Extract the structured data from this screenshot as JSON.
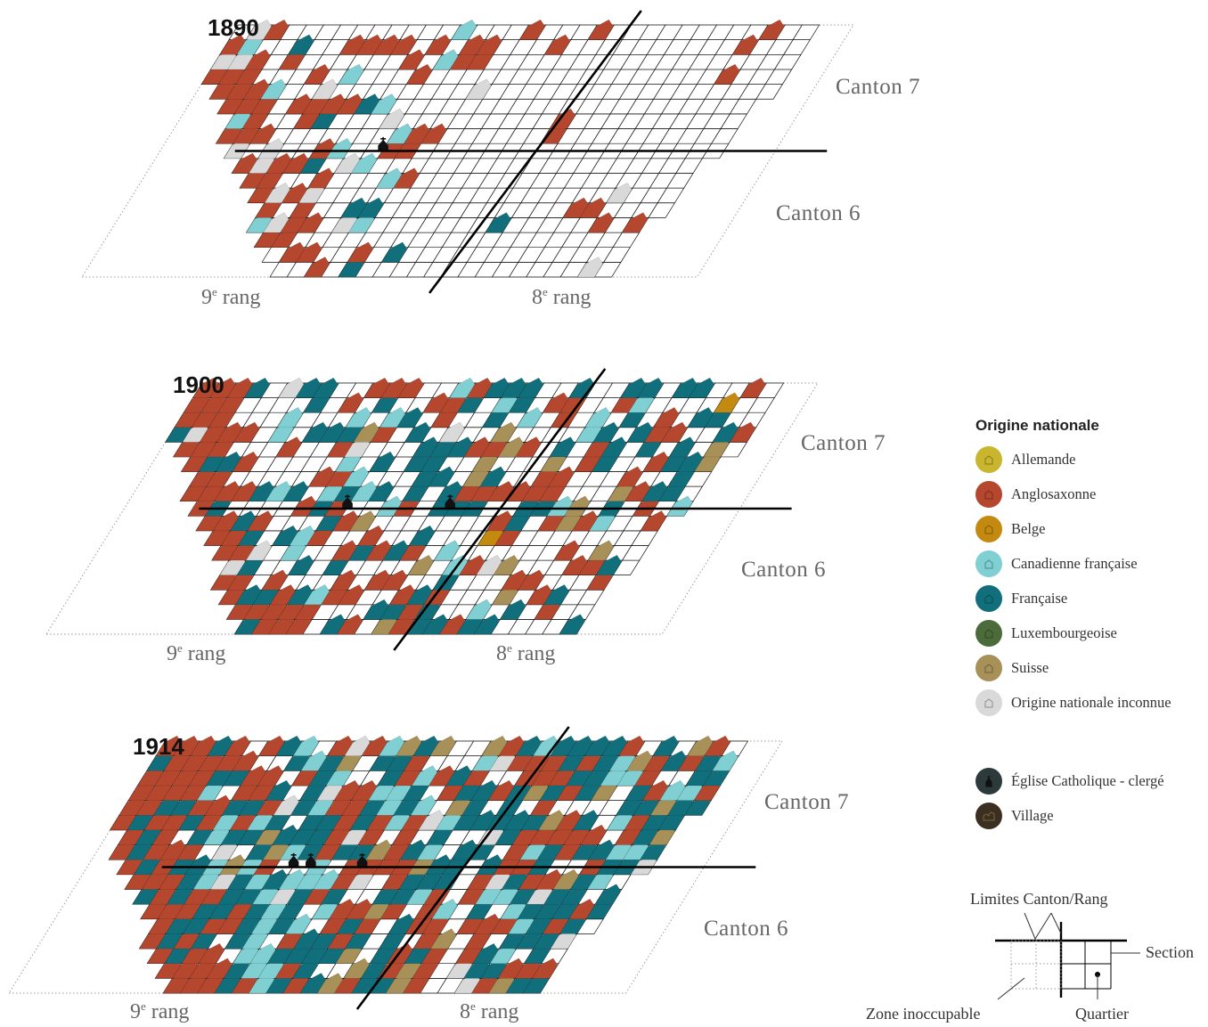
{
  "panels": [
    {
      "year": "1890",
      "canton_top": "Canton 7",
      "canton_bottom": "Canton 6",
      "rang_left_num": "9",
      "rang_right_num": "8",
      "rang_sup": "e",
      "rang_word": "rang"
    },
    {
      "year": "1900",
      "canton_top": "Canton 7",
      "canton_bottom": "Canton 6",
      "rang_left_num": "9",
      "rang_right_num": "8",
      "rang_sup": "e",
      "rang_word": "rang"
    },
    {
      "year": "1914",
      "canton_top": "Canton 7",
      "canton_bottom": "Canton 6",
      "rang_left_num": "9",
      "rang_right_num": "8",
      "rang_sup": "e",
      "rang_word": "rang"
    }
  ],
  "legend": {
    "title": "Origine nationale",
    "items": [
      {
        "label": "Allemande",
        "color": "#c9b52e",
        "icon": "house-icon"
      },
      {
        "label": "Anglosaxonne",
        "color": "#b5472e",
        "icon": "house-icon"
      },
      {
        "label": "Belge",
        "color": "#c48a10",
        "icon": "house-icon"
      },
      {
        "label": "Canadienne française",
        "color": "#7fcfd3",
        "icon": "house-icon"
      },
      {
        "label": "Française",
        "color": "#116f7c",
        "icon": "house-icon"
      },
      {
        "label": "Luxembourgeoise",
        "color": "#4b6b3a",
        "icon": "house-icon"
      },
      {
        "label": "Suisse",
        "color": "#a89158",
        "icon": "house-icon"
      },
      {
        "label": "Origine nationale inconnue",
        "color": "#d9d9d9",
        "icon": "house-icon"
      }
    ],
    "extra": [
      {
        "label": "Église Catholique - clergé",
        "color": "#2c3a3c",
        "icon": "church-icon"
      },
      {
        "label": "Village",
        "color": "#3a2f20",
        "icon": "village-icon"
      }
    ]
  },
  "schema": {
    "limits_label": "Limites Canton/Rang",
    "section_label": "Section",
    "zone_label": "Zone inoccupable",
    "quartier_label": "Quartier"
  },
  "colors": {
    "grid": "#111111",
    "cell_empty": "#ffffff",
    "dotted": "#9a9a9a"
  }
}
